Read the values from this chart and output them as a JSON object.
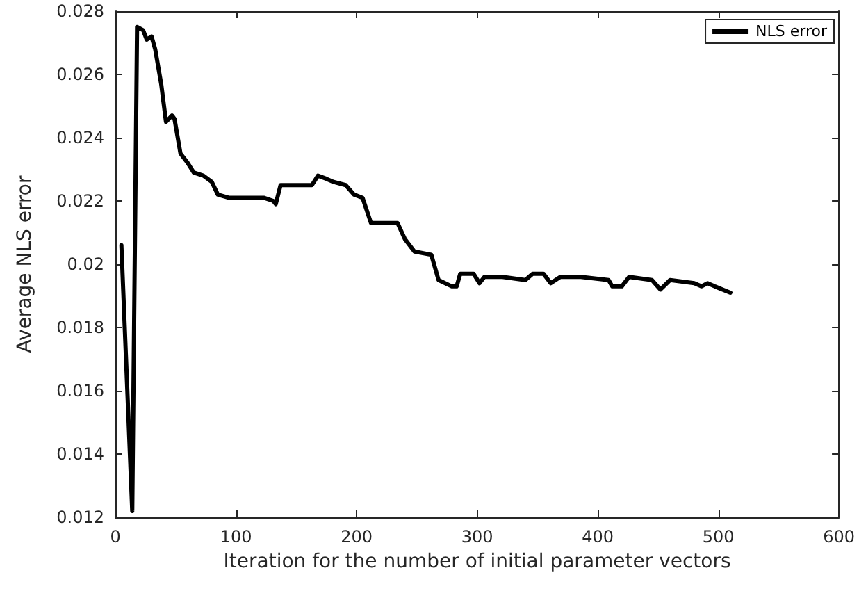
{
  "chart_data": {
    "type": "line",
    "xlabel": "Iteration for the number of initial parameter vectors",
    "ylabel": "Average NLS error",
    "xlim": [
      0,
      600
    ],
    "xticks": [
      0,
      100,
      200,
      300,
      400,
      500,
      600
    ],
    "ylim": [
      0.012,
      0.028
    ],
    "yticks": [
      0.012,
      0.014,
      0.016,
      0.018,
      0.02,
      0.022,
      0.024,
      0.026,
      0.028
    ],
    "grid": false,
    "legend": "top right",
    "marker": "none",
    "line_style": "solid",
    "series": [
      {
        "name": "NLS error",
        "color": "#000000",
        "x": [
          5,
          14,
          18,
          23,
          26,
          30,
          33,
          38,
          42,
          47,
          49,
          54,
          60,
          65,
          73,
          80,
          85,
          94,
          123,
          131,
          133,
          137,
          163,
          168,
          175,
          181,
          191,
          198,
          205,
          212,
          234,
          240,
          248,
          262,
          268,
          279,
          283,
          286,
          297,
          302,
          306,
          321,
          340,
          346,
          355,
          361,
          369,
          386,
          409,
          412,
          420,
          426,
          445,
          452,
          460,
          480,
          486,
          491,
          497,
          510
        ],
        "values": [
          0.0206,
          0.0122,
          0.0275,
          0.0274,
          0.0271,
          0.0272,
          0.0268,
          0.0257,
          0.0245,
          0.0247,
          0.0246,
          0.0235,
          0.0232,
          0.0229,
          0.0228,
          0.0226,
          0.0222,
          0.0221,
          0.0221,
          0.022,
          0.0219,
          0.0225,
          0.0225,
          0.0228,
          0.0227,
          0.0226,
          0.0225,
          0.0222,
          0.0221,
          0.0213,
          0.0213,
          0.0208,
          0.0204,
          0.0203,
          0.0195,
          0.0193,
          0.0193,
          0.0197,
          0.0197,
          0.0194,
          0.0196,
          0.0196,
          0.0195,
          0.0197,
          0.0197,
          0.0194,
          0.0196,
          0.0196,
          0.0195,
          0.0193,
          0.0193,
          0.0196,
          0.0195,
          0.0192,
          0.0195,
          0.0194,
          0.0193,
          0.0194,
          0.0193,
          0.0191
        ]
      }
    ]
  }
}
